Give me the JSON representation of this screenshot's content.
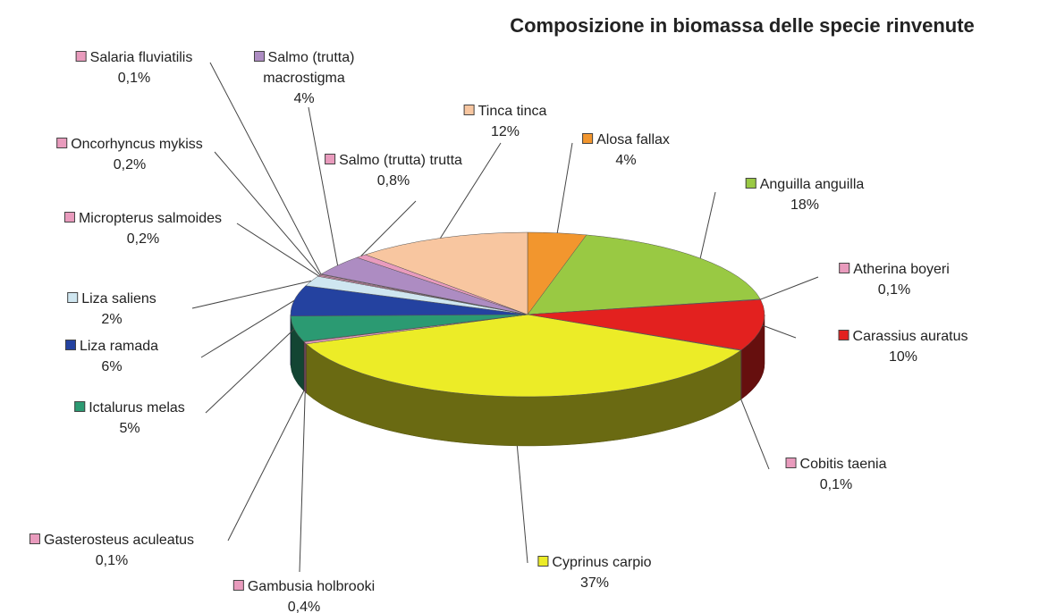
{
  "chart_data": {
    "type": "pie3d",
    "title": "Composizione in biomassa delle specie rinvenute",
    "categories": [
      "Alosa fallax",
      "Anguilla anguilla",
      "Atherina boyeri",
      "Carassius auratus",
      "Cobitis taenia",
      "Cyprinus carpio",
      "Gambusia holbrooki",
      "Gasterosteus aculeatus",
      "Ictalurus melas",
      "Liza ramada",
      "Liza saliens",
      "Micropterus salmoides",
      "Oncorhyncus mykiss",
      "Salaria fluviatilis",
      "Salmo (trutta) macrostigma",
      "Salmo (trutta) trutta",
      "Tinca tinca"
    ],
    "values": [
      4,
      18,
      0.1,
      10,
      0.1,
      37,
      0.4,
      0.1,
      5,
      6,
      2,
      0.2,
      0.2,
      0.1,
      4,
      0.8,
      12
    ],
    "value_labels": [
      "4%",
      "18%",
      "0,1%",
      "10%",
      "0,1%",
      "37%",
      "0,4%",
      "0,1%",
      "5%",
      "6%",
      "2%",
      "0,2%",
      "0,2%",
      "0,1%",
      "4%",
      "0,8%",
      "12%"
    ],
    "colors": [
      "#f2962e",
      "#99c943",
      "#e99bbd",
      "#e3211f",
      "#e99bbd",
      "#ecec27",
      "#e99bbd",
      "#e99bbd",
      "#2b9a72",
      "#2442a0",
      "#cfe6f0",
      "#e99bbd",
      "#e99bbd",
      "#e99bbd",
      "#ad8cc2",
      "#e99bbd",
      "#f8c6a0"
    ]
  }
}
